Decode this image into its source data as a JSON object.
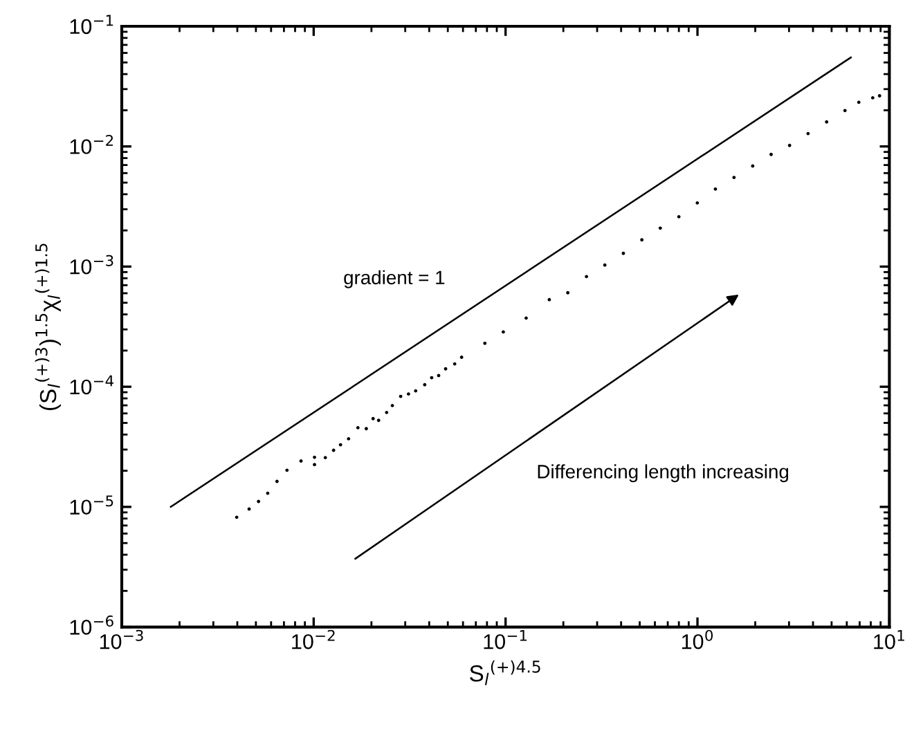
{
  "chart_data": {
    "type": "scatter",
    "xlabel": "S$_{l}$$^{(+)4.5}$",
    "ylabel": "(S$_{l}$$^{(+)3}$)$^{1.5}$χ$_{l}$$^{(+)1.5}$",
    "log": "xy",
    "grid": false,
    "legend": false,
    "xlim": [
      0.001,
      10
    ],
    "ylim": [
      1e-06,
      0.1
    ],
    "xticks": [
      {
        "value": 0.001,
        "label": "10$^{−3}$"
      },
      {
        "value": 0.01,
        "label": "10$^{−2}$"
      },
      {
        "value": 0.1,
        "label": "10$^{−1}$"
      },
      {
        "value": 1,
        "label": "10$^{0}$"
      },
      {
        "value": 10,
        "label": "10$^{1}$"
      }
    ],
    "yticks": [
      {
        "value": 1e-06,
        "label": "10$^{−6}$"
      },
      {
        "value": 1e-05,
        "label": "10$^{−5}$"
      },
      {
        "value": 0.0001,
        "label": "10$^{−4}$"
      },
      {
        "value": 0.001,
        "label": "10$^{−3}$"
      },
      {
        "value": 0.01,
        "label": "10$^{−2}$"
      },
      {
        "value": 0.1,
        "label": "10$^{−1}$"
      }
    ],
    "series": [
      {
        "color": "#000000",
        "marker": "circle",
        "x": [
          0.00397,
          0.00461,
          0.00516,
          0.00576,
          0.00644,
          0.00726,
          0.00859,
          0.0101,
          0.0101,
          0.0115,
          0.0127,
          0.0138,
          0.0152,
          0.017,
          0.0188,
          0.0204,
          0.0218,
          0.024,
          0.0257,
          0.0284,
          0.0312,
          0.034,
          0.0379,
          0.0412,
          0.0448,
          0.0487,
          0.0543,
          0.059,
          0.078,
          0.0973,
          0.128,
          0.169,
          0.211,
          0.264,
          0.329,
          0.411,
          0.513,
          0.64,
          0.8,
          0.998,
          1.24,
          1.55,
          1.94,
          2.42,
          3.02,
          3.77,
          4.71,
          5.87,
          6.93,
          8.19,
          8.89
        ],
        "values": [
          8.2e-06,
          9.6e-06,
          1.11e-05,
          1.3e-05,
          1.63e-05,
          2.02e-05,
          2.41e-05,
          2.25e-05,
          2.59e-05,
          2.57e-05,
          2.96e-05,
          3.29e-05,
          3.69e-05,
          4.56e-05,
          4.48e-05,
          5.43e-05,
          5.25e-05,
          6.11e-05,
          6.97e-05,
          8.32e-05,
          8.7e-05,
          9.24e-05,
          0.000104,
          0.000119,
          0.000124,
          0.000141,
          0.000155,
          0.000176,
          0.00023,
          0.000286,
          0.000373,
          0.000531,
          0.000606,
          0.000826,
          0.00103,
          0.00129,
          0.00167,
          0.00209,
          0.0026,
          0.00339,
          0.00442,
          0.00552,
          0.00688,
          0.00858,
          0.0102,
          0.0128,
          0.016,
          0.0199,
          0.0233,
          0.0254,
          0.0264
        ]
      },
      {
        "type": "line",
        "color": "#000000",
        "marker": "none",
        "line_style": "solid",
        "x": [
          0.0018,
          6.3
        ],
        "values": [
          1e-05,
          0.055
        ]
      }
    ],
    "annotations": [
      "gradient = 1",
      "Differencing length increasing"
    ]
  }
}
